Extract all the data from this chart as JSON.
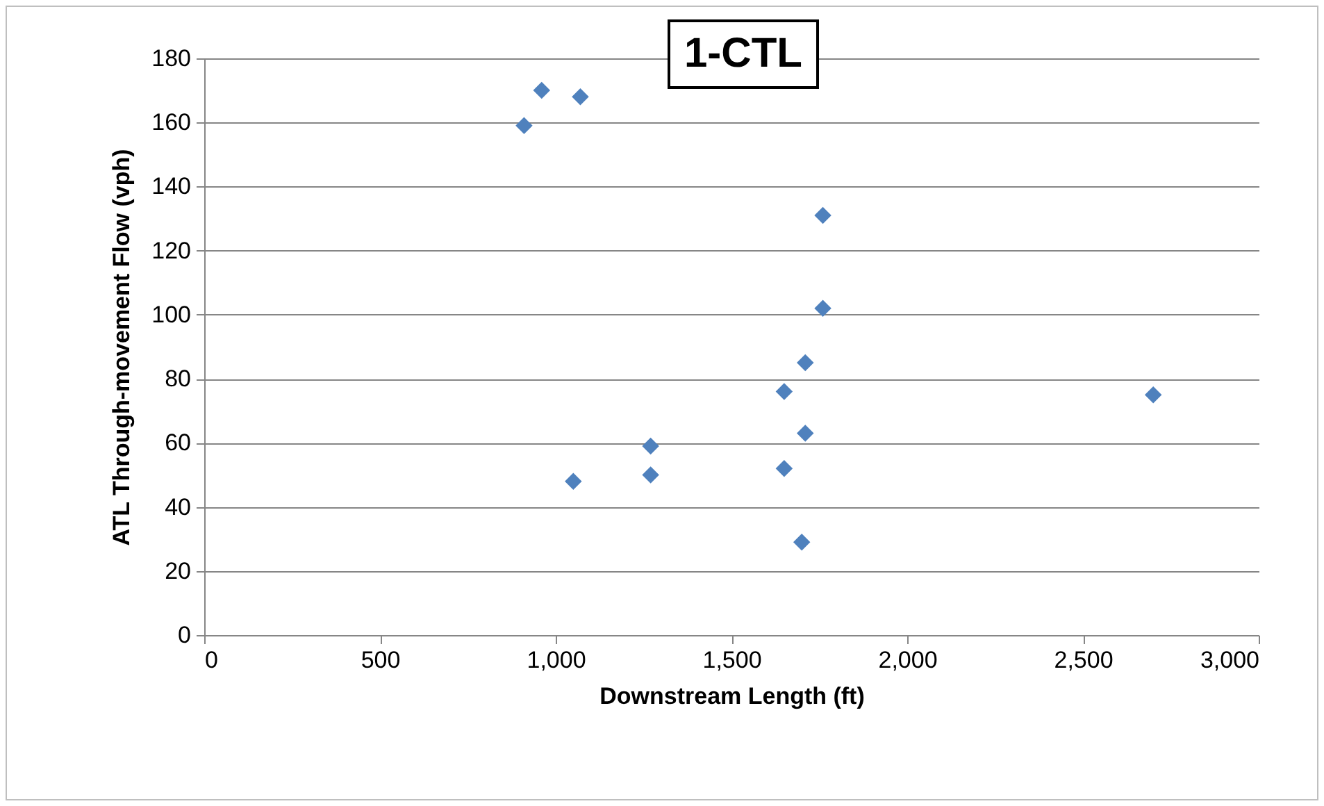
{
  "chart_data": {
    "type": "scatter",
    "title": "1-CTL",
    "xlabel": "Downstream Length (ft)",
    "ylabel": "ATL Through-movement Flow (vph)",
    "x": [
      910,
      960,
      1070,
      1760,
      1760,
      1710,
      1650,
      2700,
      1710,
      1270,
      1270,
      1050,
      1650,
      1700
    ],
    "series": [
      {
        "color": "#4f81bd",
        "values": [
          159,
          170,
          168,
          131,
          102,
          85,
          76,
          75,
          63,
          59,
          50,
          48,
          52,
          29
        ]
      }
    ],
    "xlim": [
      0,
      3000
    ],
    "xticks": [
      0,
      {
        "value": 500,
        "label": "500"
      },
      {
        "value": 1000,
        "label": "1,000"
      },
      {
        "value": 1500,
        "label": "1,500"
      },
      {
        "value": 2000,
        "label": "2,000"
      },
      {
        "value": 2500,
        "label": "2,500"
      },
      {
        "value": 3000,
        "label": "3,000"
      }
    ],
    "ylim": [
      0,
      180
    ],
    "yticks": [
      0,
      20,
      40,
      60,
      80,
      100,
      120,
      140,
      160,
      180
    ],
    "grid": "y",
    "marker": "diamond"
  }
}
